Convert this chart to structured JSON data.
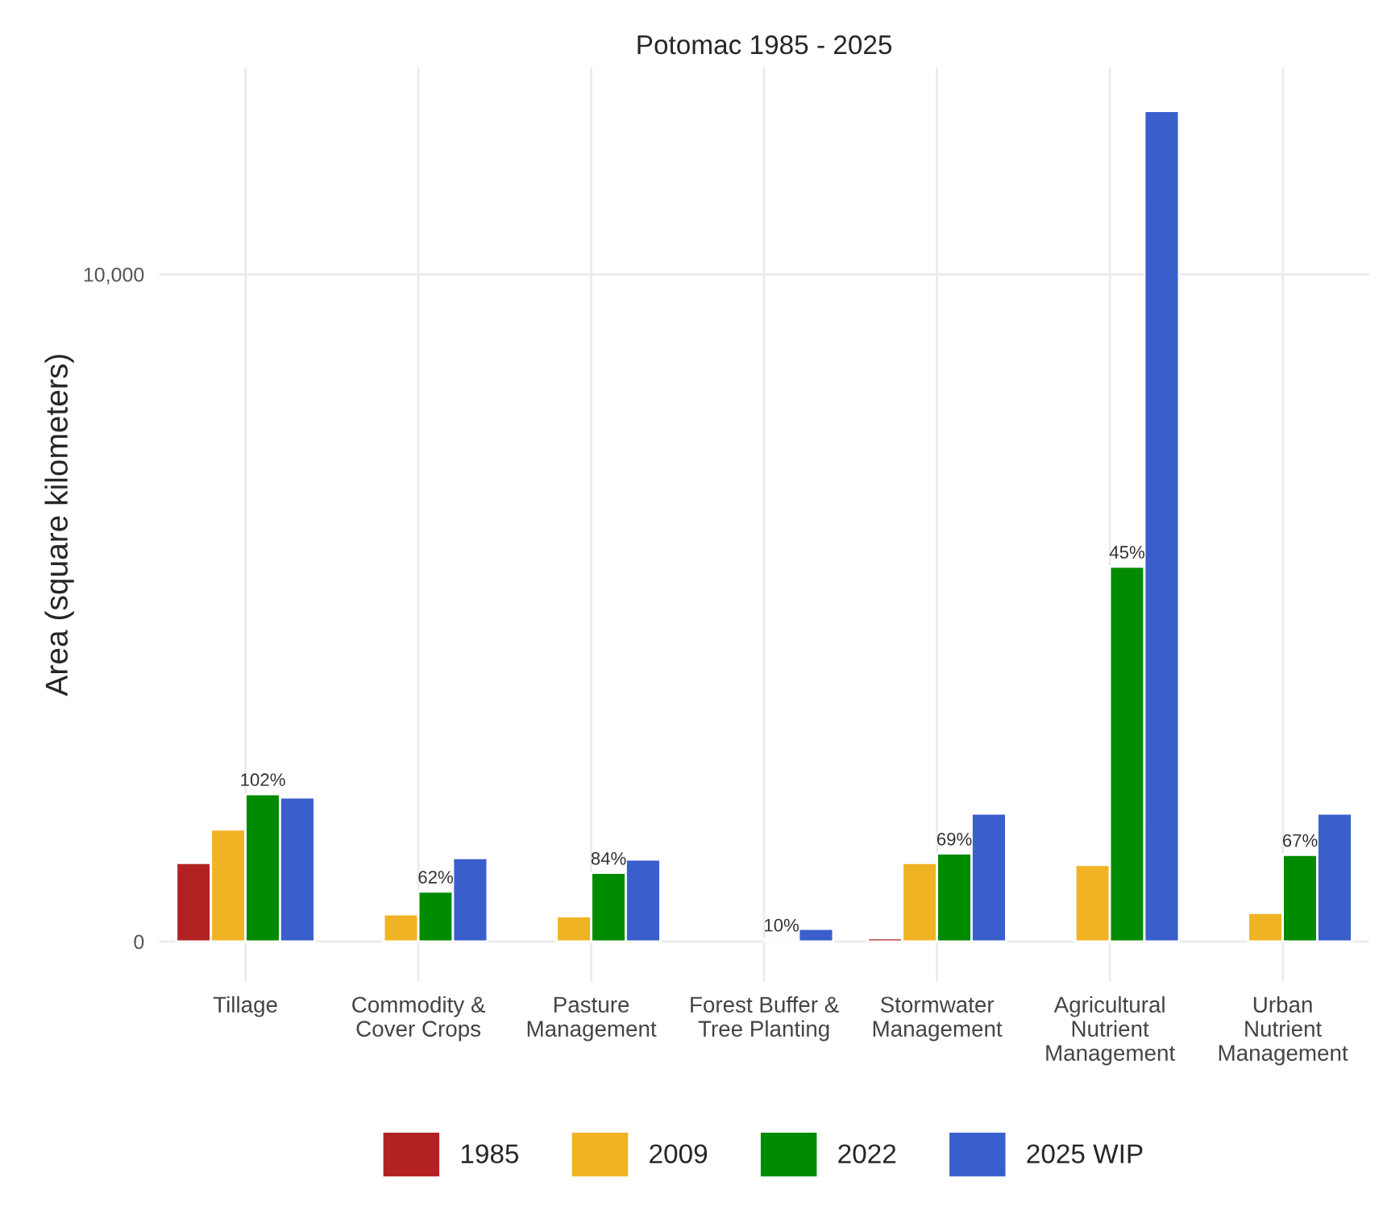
{
  "chart_data": {
    "type": "bar",
    "title": "Potomac 1985 - 2025",
    "ylabel": "Area (square kilometers)",
    "categories": [
      "Tillage",
      "Commodity &\nCover Crops",
      "Pasture\nManagement",
      "Forest Buffer &\nTree Planting",
      "Stormwater\nManagement",
      "Agricultural\nNutrient\nManagement",
      "Urban\nNutrient\nManagement"
    ],
    "series": [
      {
        "name": "1985",
        "color": "#b22222",
        "values": [
          1180,
          null,
          null,
          null,
          50,
          null,
          null
        ]
      },
      {
        "name": "2009",
        "color": "#f0b323",
        "values": [
          1680,
          410,
          380,
          null,
          1180,
          1150,
          430
        ]
      },
      {
        "name": "2022",
        "color": "#008b00",
        "values": [
          2210,
          750,
          1030,
          30,
          1320,
          5620,
          1300
        ]
      },
      {
        "name": "2025 WIP",
        "color": "#3a5fcd",
        "values": [
          2160,
          1250,
          1230,
          190,
          1920,
          12450,
          1920
        ]
      }
    ],
    "ylim": [
      -600,
      13100
    ],
    "yticks": [
      {
        "value": 0,
        "label": "0"
      },
      {
        "value": 10000,
        "label": "10,000"
      }
    ],
    "annotations": [
      {
        "text": "102%",
        "x": "Tillage",
        "y": 2210
      },
      {
        "text": "62%",
        "x": "Commodity &\nCover Crops",
        "y": 750
      },
      {
        "text": "84%",
        "x": "Pasture\nManagement",
        "y": 1030
      },
      {
        "text": "10%",
        "x": "Forest Buffer &\nTree Planting",
        "y": 30
      },
      {
        "text": "69%",
        "x": "Stormwater\nManagement",
        "y": 1320
      },
      {
        "text": "45%",
        "x": "Agricultural\nNutrient\nManagement",
        "y": 5620
      },
      {
        "text": "67%",
        "x": "Urban\nNutrient\nManagement",
        "y": 1300
      }
    ],
    "grid": true,
    "legend": "bottom"
  }
}
